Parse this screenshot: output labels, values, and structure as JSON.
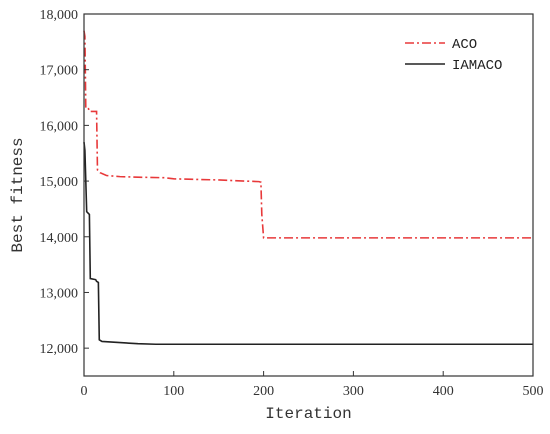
{
  "chart_data": {
    "type": "line",
    "title": "",
    "xlabel": "Iteration",
    "ylabel": "Best fitness",
    "xlim": [
      0,
      500
    ],
    "ylim": [
      11500,
      18000
    ],
    "x_ticks": [
      0,
      100,
      200,
      300,
      400,
      500
    ],
    "x_tick_labels": [
      "0",
      "100",
      "200",
      "300",
      "400",
      "500"
    ],
    "y_ticks": [
      12000,
      13000,
      14000,
      15000,
      16000,
      17000,
      18000
    ],
    "y_tick_labels": [
      "12,000",
      "13,000",
      "14,000",
      "15,000",
      "16,000",
      "17,000",
      "18,000"
    ],
    "grid": false,
    "legend_position": "top-right",
    "series": [
      {
        "name": "ACO",
        "color": "#e8393a",
        "dash": "dashdot",
        "points": [
          [
            0,
            17700
          ],
          [
            1,
            17600
          ],
          [
            2,
            16300
          ],
          [
            5,
            16300
          ],
          [
            6,
            16250
          ],
          [
            14,
            16250
          ],
          [
            15,
            15200
          ],
          [
            18,
            15150
          ],
          [
            25,
            15100
          ],
          [
            40,
            15080
          ],
          [
            60,
            15070
          ],
          [
            90,
            15060
          ],
          [
            100,
            15040
          ],
          [
            150,
            15020
          ],
          [
            180,
            15000
          ],
          [
            195,
            14990
          ],
          [
            197,
            14980
          ],
          [
            198,
            14400
          ],
          [
            200,
            13980
          ],
          [
            500,
            13980
          ]
        ]
      },
      {
        "name": "IAMACO",
        "color": "#222222",
        "dash": "solid",
        "points": [
          [
            0,
            15700
          ],
          [
            1,
            15550
          ],
          [
            3,
            14450
          ],
          [
            6,
            14400
          ],
          [
            7,
            13250
          ],
          [
            13,
            13230
          ],
          [
            14,
            13200
          ],
          [
            16,
            13180
          ],
          [
            17,
            12150
          ],
          [
            20,
            12120
          ],
          [
            40,
            12100
          ],
          [
            60,
            12080
          ],
          [
            80,
            12070
          ],
          [
            500,
            12070
          ]
        ]
      }
    ]
  }
}
